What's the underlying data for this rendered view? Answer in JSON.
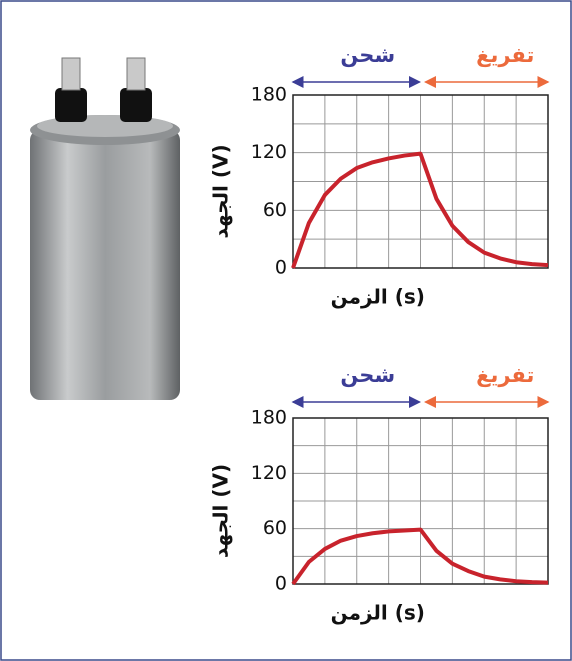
{
  "chart_data": [
    {
      "type": "line",
      "ylabel": "الجهد (V)",
      "xlabel": "الزمن (s)",
      "annotations": [
        "شحن",
        "تفريغ"
      ],
      "x": [
        0,
        0.5,
        1,
        1.5,
        2,
        2.5,
        3,
        3.5,
        4,
        4.5,
        5,
        5.5,
        6,
        6.5,
        7,
        7.5,
        8
      ],
      "values": [
        0,
        47,
        76,
        93,
        104,
        110,
        114,
        117,
        119,
        72,
        44,
        27,
        16,
        10,
        6,
        4,
        3
      ],
      "color": "#c8232c",
      "xlim": [
        0,
        8
      ],
      "ylim": [
        0,
        180
      ],
      "yticks": [
        0,
        60,
        120,
        180
      ],
      "grid": true
    },
    {
      "type": "line",
      "ylabel": "الجهد (V)",
      "xlabel": "الزمن (s)",
      "annotations": [
        "شحن",
        "تفريغ"
      ],
      "x": [
        0,
        0.5,
        1,
        1.5,
        2,
        2.5,
        3,
        3.5,
        4,
        4.5,
        5,
        5.5,
        6,
        6.5,
        7,
        7.5,
        8
      ],
      "values": [
        0,
        24,
        38,
        47,
        52,
        55,
        57,
        58,
        59,
        36,
        22,
        14,
        8,
        5,
        3,
        2,
        1.5
      ],
      "color": "#c8232c",
      "xlim": [
        0,
        8
      ],
      "ylim": [
        0,
        180
      ],
      "yticks": [
        0,
        60,
        120,
        180
      ],
      "grid": true
    }
  ]
}
